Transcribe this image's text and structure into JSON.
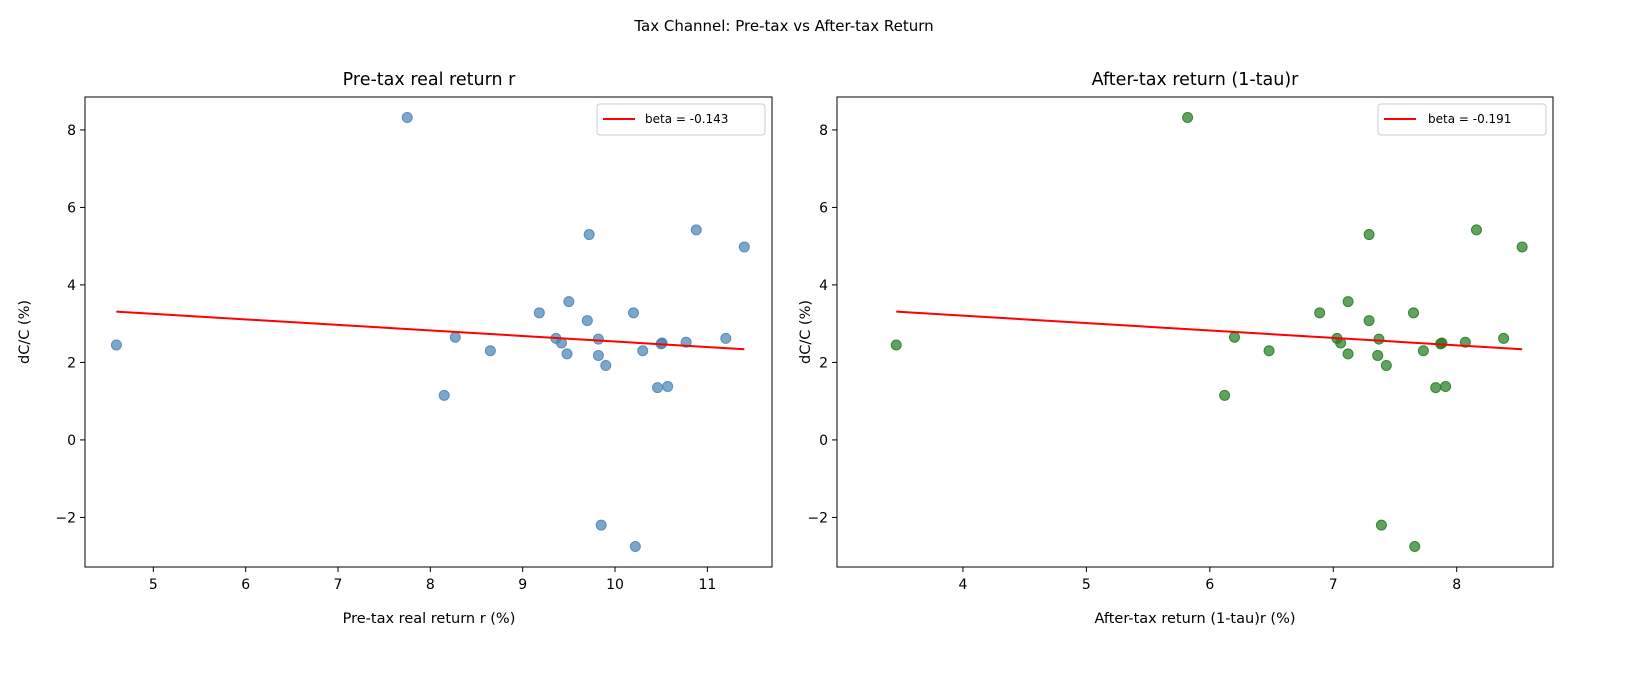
{
  "suptitle": "Tax Channel: Pre-tax vs After-tax Return",
  "chart_data": [
    {
      "type": "scatter",
      "title": "Pre-tax real return r",
      "xlabel": "Pre-tax real return r (%)",
      "ylabel": "dC/C (%)",
      "xlim": [
        4.26,
        11.7
      ],
      "ylim": [
        -3.28,
        8.85
      ],
      "xticks": [
        5,
        6,
        7,
        8,
        9,
        10,
        11
      ],
      "yticks": [
        -2,
        0,
        2,
        4,
        6,
        8
      ],
      "grid": false,
      "legend_position": "top-right",
      "point_color": "#4682b4",
      "x": [
        4.6,
        7.75,
        8.15,
        8.27,
        8.65,
        9.18,
        9.36,
        9.42,
        9.48,
        9.5,
        9.7,
        9.72,
        9.82,
        9.82,
        9.85,
        9.9,
        10.2,
        10.22,
        10.3,
        10.46,
        10.5,
        10.51,
        10.57,
        10.77,
        10.88,
        11.2,
        11.4
      ],
      "y": [
        2.45,
        8.32,
        1.15,
        2.65,
        2.3,
        3.28,
        2.62,
        2.5,
        2.22,
        3.57,
        3.08,
        5.3,
        2.6,
        2.18,
        -2.2,
        1.92,
        3.28,
        -2.75,
        2.3,
        1.35,
        2.48,
        2.5,
        1.38,
        2.52,
        5.42,
        2.62,
        4.98
      ],
      "fit": {
        "name": "beta = -0.143",
        "color": "#ff0000",
        "x": [
          4.6,
          11.4
        ],
        "y": [
          3.31,
          2.34
        ]
      }
    },
    {
      "type": "scatter",
      "title": "After-tax return (1-tau)r",
      "xlabel": "After-tax return (1-tau)r (%)",
      "ylabel": "dC/C (%)",
      "xlim": [
        2.98,
        8.78
      ],
      "ylim": [
        -3.28,
        8.85
      ],
      "xticks": [
        4,
        5,
        6,
        7,
        8
      ],
      "yticks": [
        -2,
        0,
        2,
        4,
        6,
        8
      ],
      "grid": false,
      "legend_position": "top-right",
      "point_color": "#1e7a1e",
      "x": [
        3.46,
        5.82,
        6.12,
        6.2,
        6.48,
        6.89,
        7.03,
        7.06,
        7.12,
        7.12,
        7.29,
        7.29,
        7.37,
        7.36,
        7.39,
        7.43,
        7.65,
        7.66,
        7.73,
        7.83,
        7.87,
        7.88,
        7.91,
        8.07,
        8.16,
        8.38,
        8.53
      ],
      "y": [
        2.45,
        8.32,
        1.15,
        2.65,
        2.3,
        3.28,
        2.62,
        2.5,
        2.22,
        3.57,
        3.08,
        5.3,
        2.6,
        2.18,
        -2.2,
        1.92,
        3.28,
        -2.75,
        2.3,
        1.35,
        2.48,
        2.5,
        1.38,
        2.52,
        5.42,
        2.62,
        4.98
      ],
      "fit": {
        "name": "beta = -0.191",
        "color": "#ff0000",
        "x": [
          3.46,
          8.53
        ],
        "y": [
          3.31,
          2.34
        ]
      }
    }
  ]
}
